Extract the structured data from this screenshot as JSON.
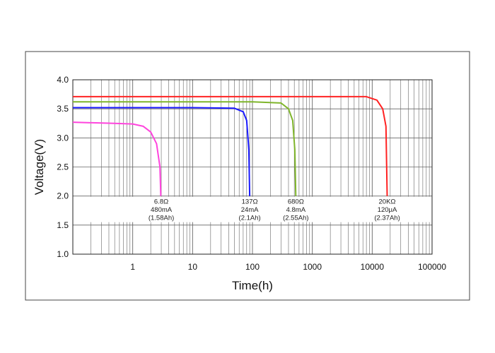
{
  "chart_data": {
    "type": "line",
    "title": "",
    "xlabel": "Time(h)",
    "ylabel": "Voltage(V)",
    "x_scale": "log",
    "xlim": [
      0.1,
      100000
    ],
    "ylim": [
      1.0,
      4.0
    ],
    "grid": true,
    "x_tick_labels": [
      {
        "value": 1,
        "label": "1"
      },
      {
        "value": 10,
        "label": "10"
      },
      {
        "value": 100,
        "label": "100"
      },
      {
        "value": 1000,
        "label": "1000"
      },
      {
        "value": 10000,
        "label": "10000"
      },
      {
        "value": 100000,
        "label": "100000"
      }
    ],
    "y_ticks": [
      {
        "value": 1.0,
        "label": "1.0"
      },
      {
        "value": 1.5,
        "label": "1.5"
      },
      {
        "value": 2.0,
        "label": "2.0"
      },
      {
        "value": 2.5,
        "label": "2.5"
      },
      {
        "value": 3.0,
        "label": "3.0"
      },
      {
        "value": 3.5,
        "label": "3.5"
      },
      {
        "value": 4.0,
        "label": "4.0"
      }
    ],
    "series": [
      {
        "color": "#ff44dd",
        "points": [
          [
            0.1,
            3.27
          ],
          [
            0.5,
            3.25
          ],
          [
            1,
            3.24
          ],
          [
            1.5,
            3.2
          ],
          [
            2,
            3.1
          ],
          [
            2.5,
            2.9
          ],
          [
            2.85,
            2.5
          ],
          [
            2.95,
            2.0
          ]
        ],
        "annotation": [
          "6.8Ω",
          "480mA",
          "(1.58Ah)"
        ],
        "annotation_x": 3.0
      },
      {
        "color": "#1a1aff",
        "points": [
          [
            0.1,
            3.52
          ],
          [
            1,
            3.52
          ],
          [
            10,
            3.52
          ],
          [
            50,
            3.51
          ],
          [
            70,
            3.45
          ],
          [
            80,
            3.3
          ],
          [
            87,
            2.8
          ],
          [
            90,
            2.0
          ]
        ],
        "annotation": [
          "137Ω",
          "24mA",
          "(2.1Ah)"
        ],
        "annotation_x": 90
      },
      {
        "color": "#7fb52b",
        "points": [
          [
            0.1,
            3.62
          ],
          [
            10,
            3.62
          ],
          [
            100,
            3.62
          ],
          [
            300,
            3.6
          ],
          [
            400,
            3.5
          ],
          [
            470,
            3.3
          ],
          [
            510,
            2.8
          ],
          [
            530,
            2.0
          ]
        ],
        "annotation": [
          "680Ω",
          "4.8mA",
          "(2.55Ah)"
        ],
        "annotation_x": 530
      },
      {
        "color": "#ff2222",
        "points": [
          [
            0.1,
            3.71
          ],
          [
            10,
            3.71
          ],
          [
            1000,
            3.71
          ],
          [
            8000,
            3.71
          ],
          [
            12000,
            3.65
          ],
          [
            15000,
            3.5
          ],
          [
            17000,
            3.2
          ],
          [
            17800,
            2.0
          ]
        ],
        "annotation": [
          "20KΩ",
          "120μA",
          "(2.37Ah)"
        ],
        "annotation_x": 17800
      }
    ]
  }
}
